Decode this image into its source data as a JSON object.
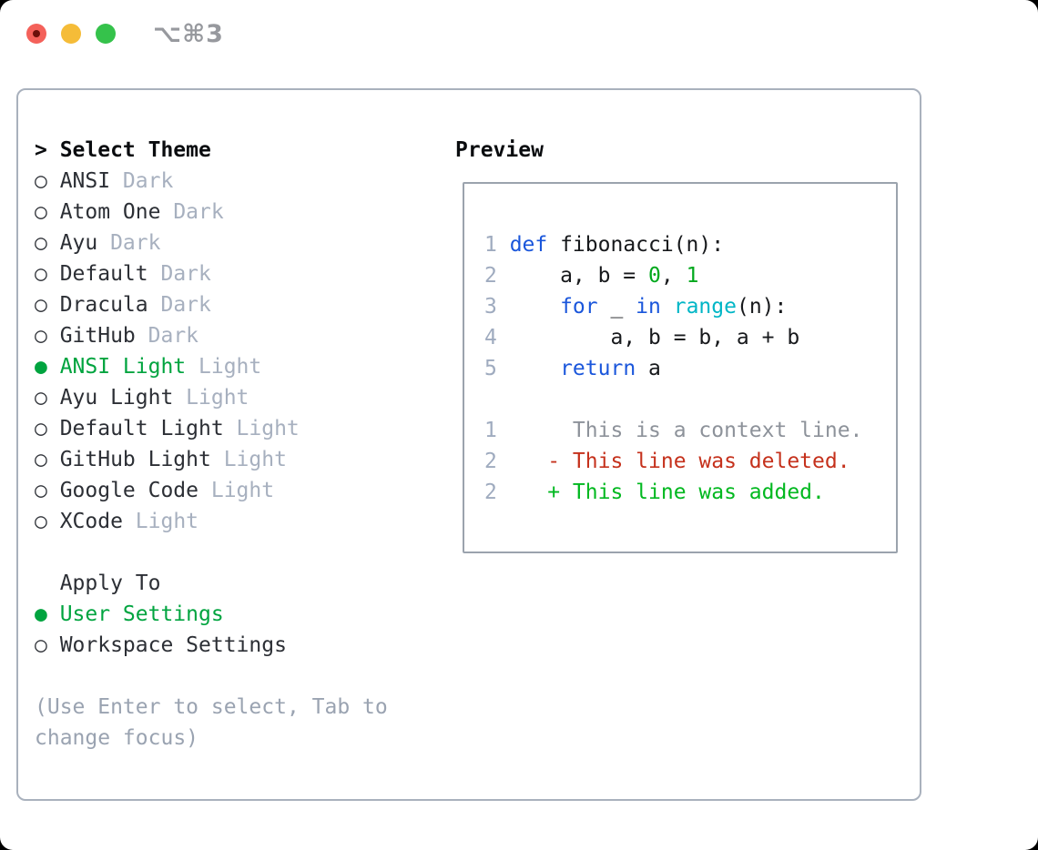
{
  "window": {
    "title": "⌥⌘3"
  },
  "colors": {
    "selection_green": "#00a43f",
    "diff_added_green": "#00b81f",
    "diff_deleted_red": "#c5311c",
    "keyword_blue": "#1a56db",
    "builtin_cyan": "#00b6c6",
    "number_literal_green": "#00a81c",
    "muted_label_gray": "#a7b0bf",
    "panel_border_gray": "#a9b1bd",
    "traffic_close_red": "#f4615a",
    "traffic_minimize_yellow": "#f5bc38",
    "traffic_zoom_green": "#35c24b"
  },
  "theme_panel": {
    "prompt": ">",
    "header": "Select Theme",
    "items": [
      {
        "marker": "○",
        "name": "ANSI",
        "variant": "Dark",
        "selected": false
      },
      {
        "marker": "○",
        "name": "Atom One",
        "variant": "Dark",
        "selected": false
      },
      {
        "marker": "○",
        "name": "Ayu",
        "variant": "Dark",
        "selected": false
      },
      {
        "marker": "○",
        "name": "Default",
        "variant": "Dark",
        "selected": false
      },
      {
        "marker": "○",
        "name": "Dracula",
        "variant": "Dark",
        "selected": false
      },
      {
        "marker": "○",
        "name": "GitHub",
        "variant": "Dark",
        "selected": false
      },
      {
        "marker": "●",
        "name": "ANSI Light",
        "variant": "Light",
        "selected": true
      },
      {
        "marker": "○",
        "name": "Ayu Light",
        "variant": "Light",
        "selected": false
      },
      {
        "marker": "○",
        "name": "Default Light",
        "variant": "Light",
        "selected": false
      },
      {
        "marker": "○",
        "name": "GitHub Light",
        "variant": "Light",
        "selected": false
      },
      {
        "marker": "○",
        "name": "Google Code",
        "variant": "Light",
        "selected": false
      },
      {
        "marker": "○",
        "name": "XCode",
        "variant": "Light",
        "selected": false
      }
    ],
    "apply_header": "Apply To",
    "apply_options": [
      {
        "marker": "●",
        "label": "User Settings",
        "selected": true
      },
      {
        "marker": "○",
        "label": "Workspace Settings",
        "selected": false
      }
    ],
    "hint": "(Use Enter to select, Tab to change focus)"
  },
  "preview": {
    "header": "Preview",
    "lines": [
      {
        "n": "1",
        "tokens": [
          {
            "c": "kw",
            "s": "def"
          },
          {
            "c": "pl",
            "s": " fibonacci(n):"
          }
        ]
      },
      {
        "n": "2",
        "tokens": [
          {
            "c": "pl",
            "s": "    a, b = "
          },
          {
            "c": "num",
            "s": "0"
          },
          {
            "c": "pl",
            "s": ", "
          },
          {
            "c": "num",
            "s": "1"
          }
        ]
      },
      {
        "n": "3",
        "tokens": [
          {
            "c": "pl",
            "s": "    "
          },
          {
            "c": "kw",
            "s": "for"
          },
          {
            "c": "pl",
            "s": " _ "
          },
          {
            "c": "kw",
            "s": "in"
          },
          {
            "c": "pl",
            "s": " "
          },
          {
            "c": "cy",
            "s": "range"
          },
          {
            "c": "pl",
            "s": "(n):"
          }
        ]
      },
      {
        "n": "4",
        "tokens": [
          {
            "c": "pl",
            "s": "        a, b = b, a + b"
          }
        ]
      },
      {
        "n": "5",
        "tokens": [
          {
            "c": "pl",
            "s": "    "
          },
          {
            "c": "kw",
            "s": "return"
          },
          {
            "c": "pl",
            "s": " a"
          }
        ]
      },
      {
        "n": "",
        "tokens": []
      },
      {
        "n": "1",
        "tokens": [
          {
            "c": "ctx",
            "s": "     This is a context line."
          }
        ]
      },
      {
        "n": "2",
        "tokens": [
          {
            "c": "del",
            "s": "   - This line was deleted."
          }
        ]
      },
      {
        "n": "2",
        "tokens": [
          {
            "c": "add",
            "s": "   + This line was added."
          }
        ]
      }
    ]
  }
}
